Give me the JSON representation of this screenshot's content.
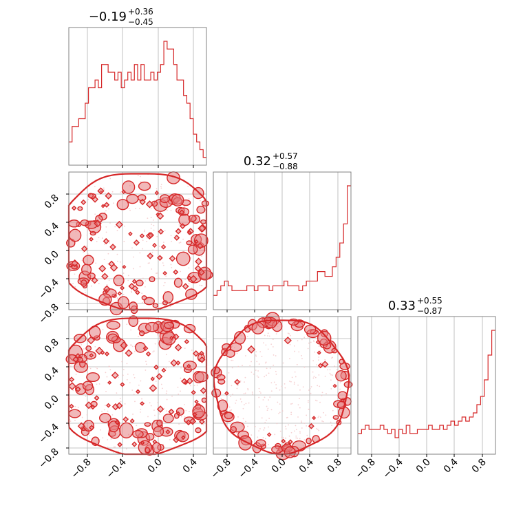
{
  "colors": {
    "series": "#d62728",
    "fill_light": "#f2c4c5",
    "fill_mid": "#e57e80",
    "grid": "#b0b0b0",
    "frame": "#808080"
  },
  "chart_data": {
    "type": "corner",
    "grid": true,
    "x_ticks": [
      "−0.8",
      "−0.4",
      "0.0",
      "0.4",
      "0.8"
    ],
    "y_ticks": [
      "0.8",
      "0.4",
      "0.0",
      "−0.4",
      "−0.8"
    ],
    "titles": [
      {
        "median": "−0.19",
        "plus": "+0.36",
        "minus": "−0.45"
      },
      {
        "median": "0.32",
        "plus": "+0.57",
        "minus": "−0.88"
      },
      {
        "median": "0.33",
        "plus": "+0.55",
        "minus": "−0.87"
      }
    ],
    "histograms": [
      {
        "range": [
          -1.0,
          0.55
        ],
        "counts": [
          3,
          5,
          5,
          6,
          6,
          8,
          10,
          10,
          11,
          10,
          13,
          13,
          12,
          12,
          11,
          12,
          10,
          11,
          12,
          11,
          13,
          11,
          13,
          11,
          11,
          12,
          11,
          12,
          13,
          16,
          15,
          15,
          13,
          11,
          11,
          9,
          8,
          6,
          4,
          3,
          2,
          1
        ]
      },
      {
        "range": [
          -0.95,
          0.97
        ],
        "counts": [
          3,
          4,
          5,
          6,
          5,
          4,
          4,
          4,
          4,
          5,
          5,
          4,
          5,
          5,
          5,
          4,
          5,
          5,
          5,
          6,
          5,
          5,
          5,
          4,
          5,
          6,
          6,
          6,
          8,
          8,
          7,
          7,
          9,
          11,
          14,
          18,
          26
        ]
      },
      {
        "range": [
          -0.95,
          0.97
        ],
        "counts": [
          5,
          6,
          7,
          6,
          6,
          6,
          7,
          6,
          5,
          6,
          4,
          6,
          5,
          7,
          5,
          5,
          6,
          6,
          6,
          7,
          6,
          6,
          7,
          6,
          7,
          8,
          7,
          8,
          9,
          8,
          9,
          10,
          12,
          14,
          18,
          24,
          30
        ]
      }
    ],
    "panels": [
      {
        "name": "param2-vs-param1",
        "x_range": [
          -1.0,
          0.55
        ],
        "y_range": [
          -0.95,
          0.97
        ],
        "shape": "disk",
        "center": [
          -0.2,
          0.0
        ],
        "radius": 0.98
      },
      {
        "name": "param3-vs-param1",
        "x_range": [
          -1.0,
          0.55
        ],
        "y_range": [
          -0.95,
          0.97
        ],
        "shape": "disk",
        "center": [
          -0.2,
          0.0
        ],
        "radius": 0.98
      },
      {
        "name": "param3-vs-param2",
        "x_range": [
          -0.95,
          0.97
        ],
        "y_range": [
          -0.95,
          0.97
        ],
        "shape": "ring",
        "center": [
          0.0,
          0.0
        ],
        "radius": 0.95
      }
    ]
  }
}
